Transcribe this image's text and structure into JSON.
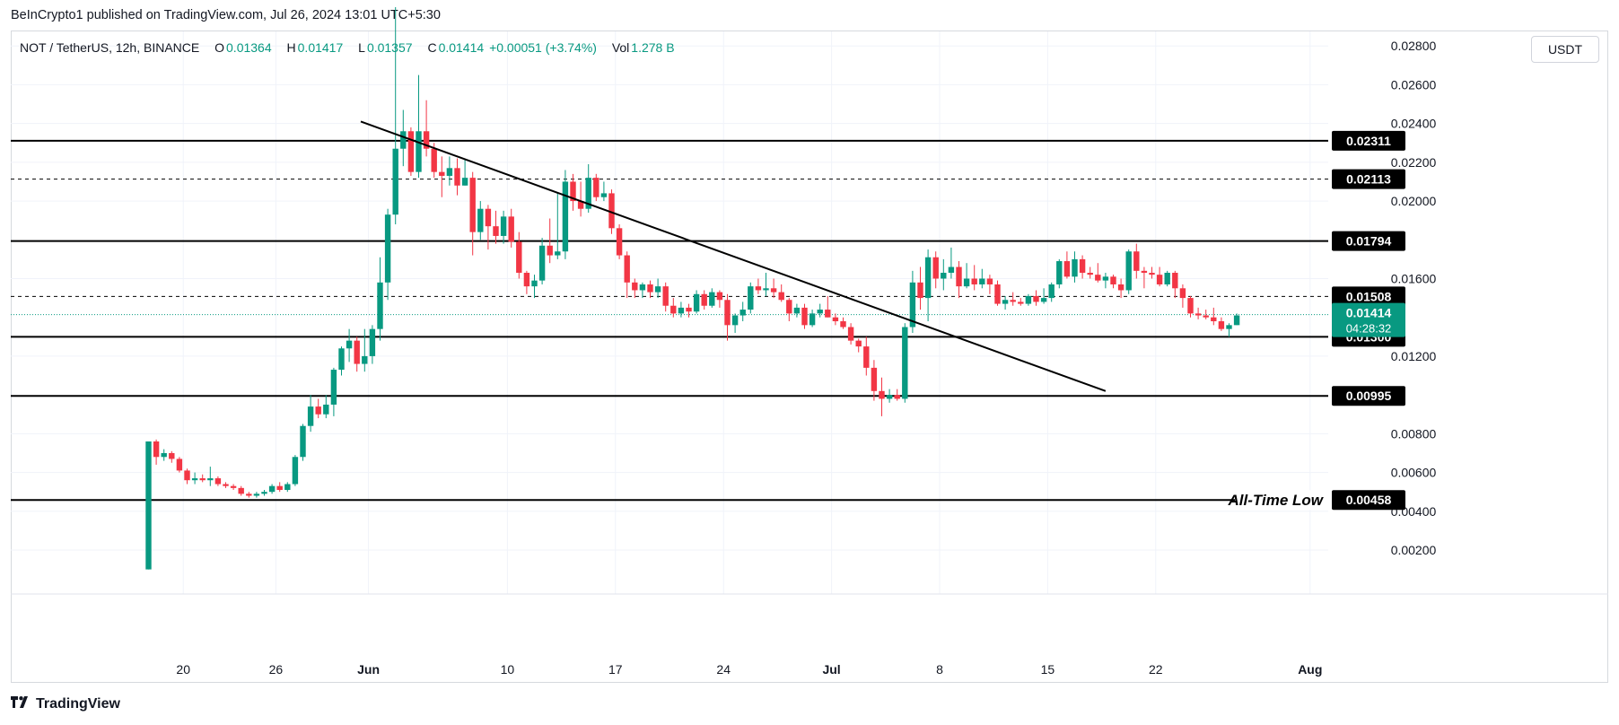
{
  "header": {
    "publisher_line": "BeInCrypto1 published on TradingView.com, Jul 26, 2024 13:01 UTC+5:30"
  },
  "legend": {
    "symbol": "NOT / TetherUS, 12h, BINANCE",
    "o_label": "O",
    "o_value": "0.01364",
    "h_label": "H",
    "h_value": "0.01417",
    "l_label": "L",
    "l_value": "0.01357",
    "c_label": "C",
    "c_value": "0.01414",
    "change": "+0.00051 (+3.74%)",
    "vol_label": "Vol",
    "vol_value": "1.278 B"
  },
  "toolbar": {
    "currency_label": "USDT"
  },
  "footer": {
    "brand": "TradingView"
  },
  "colors": {
    "up": "#089981",
    "down": "#f23645",
    "grid": "#f0f3fa",
    "level": "#000000"
  },
  "chart_data": {
    "type": "candlestick",
    "title": "NOT / TetherUS, 12h, BINANCE",
    "ylim": [
      0.00075,
      0.02875
    ],
    "y_ticks": [
      "0.00200",
      "0.00400",
      "0.00600",
      "0.00800",
      "0.01200",
      "0.01600",
      "0.02000",
      "0.02200",
      "0.02400",
      "0.02600",
      "0.02800"
    ],
    "x_ticks": [
      "20",
      "26",
      "Jun",
      "10",
      "17",
      "24",
      "Jul",
      "8",
      "15",
      "22",
      "Aug"
    ],
    "x_tick_index": [
      5,
      17,
      29,
      47,
      61,
      75,
      89,
      103,
      117,
      131,
      151
    ],
    "levels": [
      {
        "value": 0.02311,
        "label": "0.02311",
        "style": "solid"
      },
      {
        "value": 0.02113,
        "label": "0.02113",
        "style": "dashed"
      },
      {
        "value": 0.01794,
        "label": "0.01794",
        "style": "solid"
      },
      {
        "value": 0.01508,
        "label": "0.01508",
        "style": "dashed"
      },
      {
        "value": 0.013,
        "label": "0.01300",
        "style": "solid"
      },
      {
        "value": 0.00995,
        "label": "0.00995",
        "style": "solid"
      },
      {
        "value": 0.00458,
        "label": "0.00458",
        "style": "solid"
      }
    ],
    "current_price": {
      "label": "0.01414",
      "countdown": "04:28:32",
      "value": 0.01414
    },
    "annotation": "All-Time Low",
    "trendline": {
      "start_index": 28,
      "start_value": 0.0241,
      "end_index": 124.5,
      "end_value": 0.0102
    },
    "start_index": 0.5,
    "candles": [
      [
        0.001,
        0.0076,
        0.001,
        0.0076
      ],
      [
        0.0076,
        0.0077,
        0.0064,
        0.0068
      ],
      [
        0.0068,
        0.0072,
        0.0066,
        0.007
      ],
      [
        0.007,
        0.0071,
        0.0065,
        0.0067
      ],
      [
        0.0067,
        0.0068,
        0.006,
        0.0061
      ],
      [
        0.0061,
        0.0062,
        0.0054,
        0.0056
      ],
      [
        0.0056,
        0.006,
        0.0054,
        0.0057
      ],
      [
        0.0057,
        0.0059,
        0.0055,
        0.0056
      ],
      [
        0.0056,
        0.0063,
        0.0053,
        0.0057
      ],
      [
        0.0057,
        0.0058,
        0.0053,
        0.0054
      ],
      [
        0.0054,
        0.0055,
        0.0052,
        0.0053
      ],
      [
        0.0053,
        0.0054,
        0.0051,
        0.0052
      ],
      [
        0.0052,
        0.0053,
        0.0048,
        0.0049
      ],
      [
        0.0049,
        0.005,
        0.0047,
        0.0048
      ],
      [
        0.0048,
        0.005,
        0.0047,
        0.0049
      ],
      [
        0.0049,
        0.0051,
        0.0048,
        0.005
      ],
      [
        0.005,
        0.0054,
        0.0049,
        0.0053
      ],
      [
        0.0053,
        0.0055,
        0.005,
        0.0051
      ],
      [
        0.0051,
        0.0055,
        0.005,
        0.0054
      ],
      [
        0.0054,
        0.0069,
        0.0053,
        0.0068
      ],
      [
        0.0068,
        0.0085,
        0.0066,
        0.0084
      ],
      [
        0.0084,
        0.01,
        0.0081,
        0.0094
      ],
      [
        0.0094,
        0.0098,
        0.0088,
        0.009
      ],
      [
        0.009,
        0.01,
        0.0088,
        0.0095
      ],
      [
        0.0095,
        0.0114,
        0.0089,
        0.0113
      ],
      [
        0.0113,
        0.0125,
        0.011,
        0.0124
      ],
      [
        0.0124,
        0.0134,
        0.0117,
        0.0128
      ],
      [
        0.0128,
        0.013,
        0.0112,
        0.0116
      ],
      [
        0.0116,
        0.0134,
        0.0112,
        0.012
      ],
      [
        0.012,
        0.0136,
        0.0116,
        0.0134
      ],
      [
        0.0134,
        0.0171,
        0.0128,
        0.0158
      ],
      [
        0.0158,
        0.0196,
        0.0149,
        0.0193
      ],
      [
        0.0193,
        0.03,
        0.0188,
        0.0227
      ],
      [
        0.0227,
        0.0247,
        0.0218,
        0.0236
      ],
      [
        0.0236,
        0.0238,
        0.0213,
        0.0215
      ],
      [
        0.0215,
        0.0265,
        0.0212,
        0.0236
      ],
      [
        0.0236,
        0.0252,
        0.0223,
        0.0227
      ],
      [
        0.0227,
        0.023,
        0.0212,
        0.0215
      ],
      [
        0.0215,
        0.0223,
        0.0202,
        0.0213
      ],
      [
        0.0213,
        0.0223,
        0.0208,
        0.0217
      ],
      [
        0.0217,
        0.0222,
        0.0203,
        0.0208
      ],
      [
        0.0208,
        0.0222,
        0.0208,
        0.0212
      ],
      [
        0.0212,
        0.0215,
        0.0172,
        0.0184
      ],
      [
        0.0184,
        0.02,
        0.018,
        0.0196
      ],
      [
        0.0196,
        0.0198,
        0.0175,
        0.0187
      ],
      [
        0.0187,
        0.0195,
        0.0178,
        0.0182
      ],
      [
        0.0182,
        0.0195,
        0.0178,
        0.0192
      ],
      [
        0.0192,
        0.0196,
        0.0176,
        0.0179
      ],
      [
        0.0179,
        0.0184,
        0.016,
        0.0163
      ],
      [
        0.0163,
        0.0164,
        0.0152,
        0.0156
      ],
      [
        0.0156,
        0.0162,
        0.015,
        0.0159
      ],
      [
        0.0159,
        0.0181,
        0.0157,
        0.0177
      ],
      [
        0.0177,
        0.0191,
        0.0168,
        0.0172
      ],
      [
        0.0172,
        0.0204,
        0.017,
        0.0174
      ],
      [
        0.0174,
        0.0216,
        0.017,
        0.021
      ],
      [
        0.021,
        0.0214,
        0.0195,
        0.02
      ],
      [
        0.02,
        0.021,
        0.0192,
        0.0196
      ],
      [
        0.0196,
        0.0219,
        0.0194,
        0.0212
      ],
      [
        0.0212,
        0.0214,
        0.02,
        0.0202
      ],
      [
        0.0202,
        0.021,
        0.02,
        0.0204
      ],
      [
        0.0204,
        0.0206,
        0.0183,
        0.0186
      ],
      [
        0.0186,
        0.0188,
        0.017,
        0.0172
      ],
      [
        0.0172,
        0.0174,
        0.015,
        0.0158
      ],
      [
        0.0158,
        0.016,
        0.015,
        0.0154
      ],
      [
        0.0154,
        0.0158,
        0.015,
        0.0157
      ],
      [
        0.0157,
        0.0159,
        0.015,
        0.0153
      ],
      [
        0.0153,
        0.016,
        0.015,
        0.0156
      ],
      [
        0.0156,
        0.0158,
        0.0143,
        0.0146
      ],
      [
        0.0146,
        0.015,
        0.014,
        0.0142
      ],
      [
        0.0142,
        0.0148,
        0.014,
        0.0145
      ],
      [
        0.0145,
        0.0147,
        0.014,
        0.0143
      ],
      [
        0.0143,
        0.0154,
        0.0142,
        0.0152
      ],
      [
        0.0152,
        0.0154,
        0.0144,
        0.0146
      ],
      [
        0.0146,
        0.0155,
        0.0145,
        0.0153
      ],
      [
        0.0153,
        0.0154,
        0.0145,
        0.0149
      ],
      [
        0.0149,
        0.0152,
        0.0128,
        0.0136
      ],
      [
        0.0136,
        0.0142,
        0.0132,
        0.0141
      ],
      [
        0.0141,
        0.0148,
        0.0138,
        0.0144
      ],
      [
        0.0144,
        0.0158,
        0.0142,
        0.0156
      ],
      [
        0.0156,
        0.016,
        0.0152,
        0.0154
      ],
      [
        0.0154,
        0.0163,
        0.0151,
        0.0155
      ],
      [
        0.0155,
        0.016,
        0.015,
        0.0153
      ],
      [
        0.0153,
        0.0157,
        0.0148,
        0.0149
      ],
      [
        0.0149,
        0.015,
        0.0138,
        0.0142
      ],
      [
        0.0142,
        0.0147,
        0.014,
        0.0145
      ],
      [
        0.0145,
        0.0147,
        0.0134,
        0.0136
      ],
      [
        0.0136,
        0.0144,
        0.0135,
        0.0142
      ],
      [
        0.0142,
        0.0147,
        0.014,
        0.0144
      ],
      [
        0.0144,
        0.0151,
        0.014,
        0.014
      ],
      [
        0.014,
        0.0142,
        0.0136,
        0.0138
      ],
      [
        0.0138,
        0.014,
        0.0134,
        0.0135
      ],
      [
        0.0135,
        0.0137,
        0.0126,
        0.0128
      ],
      [
        0.0128,
        0.0129,
        0.0122,
        0.0125
      ],
      [
        0.0125,
        0.013,
        0.011,
        0.0114
      ],
      [
        0.0114,
        0.0118,
        0.0097,
        0.0102
      ],
      [
        0.0102,
        0.0109,
        0.0089,
        0.0098
      ],
      [
        0.0098,
        0.0103,
        0.0096,
        0.01
      ],
      [
        0.01,
        0.0103,
        0.0097,
        0.0098
      ],
      [
        0.0098,
        0.0137,
        0.0096,
        0.0135
      ],
      [
        0.0135,
        0.0164,
        0.0132,
        0.0158
      ],
      [
        0.0158,
        0.0166,
        0.0144,
        0.015
      ],
      [
        0.015,
        0.0175,
        0.0138,
        0.0171
      ],
      [
        0.0171,
        0.0174,
        0.0155,
        0.016
      ],
      [
        0.016,
        0.017,
        0.0154,
        0.0163
      ],
      [
        0.0163,
        0.0176,
        0.016,
        0.0166
      ],
      [
        0.0166,
        0.0169,
        0.015,
        0.0156
      ],
      [
        0.0156,
        0.0168,
        0.0155,
        0.016
      ],
      [
        0.016,
        0.0167,
        0.0154,
        0.0157
      ],
      [
        0.0157,
        0.0165,
        0.0155,
        0.016
      ],
      [
        0.016,
        0.0162,
        0.0152,
        0.0157
      ],
      [
        0.0157,
        0.0159,
        0.0146,
        0.0147
      ],
      [
        0.0147,
        0.0151,
        0.0144,
        0.0149
      ],
      [
        0.0149,
        0.0153,
        0.0146,
        0.0148
      ],
      [
        0.0148,
        0.015,
        0.0146,
        0.0147
      ],
      [
        0.0147,
        0.0152,
        0.0146,
        0.0151
      ],
      [
        0.0151,
        0.0154,
        0.0146,
        0.0148
      ],
      [
        0.0148,
        0.0155,
        0.0147,
        0.015
      ],
      [
        0.015,
        0.0158,
        0.0148,
        0.0157
      ],
      [
        0.0157,
        0.017,
        0.0155,
        0.0169
      ],
      [
        0.0169,
        0.0174,
        0.016,
        0.0161
      ],
      [
        0.0161,
        0.0174,
        0.0158,
        0.017
      ],
      [
        0.017,
        0.0172,
        0.016,
        0.0163
      ],
      [
        0.0163,
        0.0166,
        0.016,
        0.0162
      ],
      [
        0.0162,
        0.0168,
        0.0158,
        0.0159
      ],
      [
        0.0159,
        0.0163,
        0.0155,
        0.0161
      ],
      [
        0.0161,
        0.0162,
        0.0155,
        0.0157
      ],
      [
        0.0157,
        0.016,
        0.015,
        0.0154
      ],
      [
        0.0154,
        0.0175,
        0.0152,
        0.0174
      ],
      [
        0.0174,
        0.0178,
        0.016,
        0.0164
      ],
      [
        0.0164,
        0.0166,
        0.0155,
        0.0163
      ],
      [
        0.0163,
        0.0166,
        0.016,
        0.0162
      ],
      [
        0.0162,
        0.0166,
        0.0156,
        0.0157
      ],
      [
        0.0157,
        0.0164,
        0.0156,
        0.0163
      ],
      [
        0.0163,
        0.0164,
        0.015,
        0.0155
      ],
      [
        0.0155,
        0.0157,
        0.0145,
        0.015
      ],
      [
        0.015,
        0.0151,
        0.014,
        0.0142
      ],
      [
        0.0142,
        0.0145,
        0.0139,
        0.0141
      ],
      [
        0.0141,
        0.0144,
        0.0139,
        0.014
      ],
      [
        0.014,
        0.0145,
        0.0136,
        0.0138
      ],
      [
        0.0138,
        0.014,
        0.0133,
        0.0134
      ],
      [
        0.0134,
        0.0137,
        0.013,
        0.0136
      ],
      [
        0.0136,
        0.0142,
        0.0136,
        0.0141
      ]
    ]
  }
}
